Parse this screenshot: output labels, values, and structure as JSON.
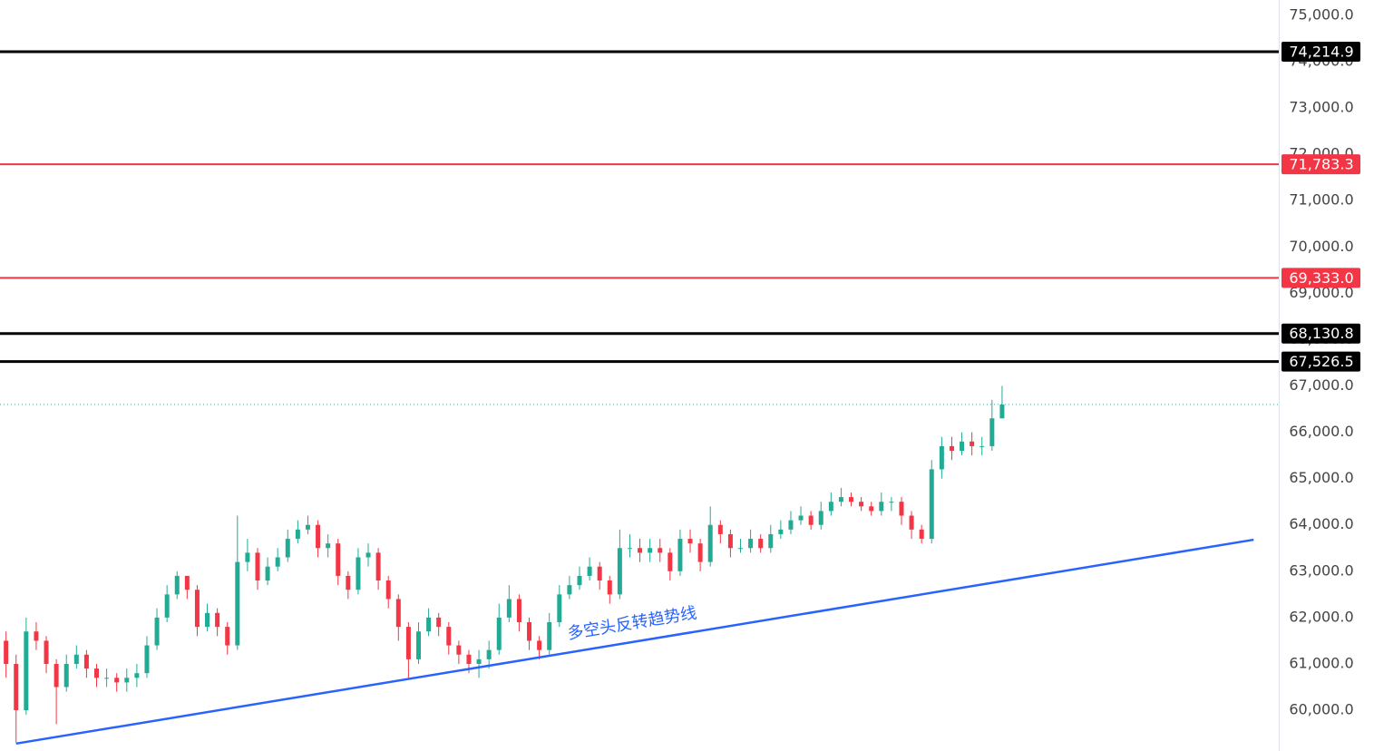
{
  "chart_data": {
    "type": "candlestick",
    "xlim": [
      -0.6,
      126.5
    ],
    "ylim": [
      59120,
      75330
    ],
    "yticks": [
      {
        "value": 60000,
        "label": "60,000.0"
      },
      {
        "value": 61000,
        "label": "61,000.0"
      },
      {
        "value": 62000,
        "label": "62,000.0"
      },
      {
        "value": 63000,
        "label": "63,000.0"
      },
      {
        "value": 64000,
        "label": "64,000.0"
      },
      {
        "value": 65000,
        "label": "65,000.0"
      },
      {
        "value": 66000,
        "label": "66,000.0"
      },
      {
        "value": 67000,
        "label": "67,000.0"
      },
      {
        "value": 68000,
        "label": "68,000.0"
      },
      {
        "value": 69000,
        "label": "69,000.0"
      },
      {
        "value": 70000,
        "label": "70,000.0"
      },
      {
        "value": 71000,
        "label": "71,000.0"
      },
      {
        "value": 72000,
        "label": "72,000.0"
      },
      {
        "value": 73000,
        "label": "73,000.0"
      },
      {
        "value": 74000,
        "label": "74,000.0"
      },
      {
        "value": 75000,
        "label": "75,000.0"
      }
    ],
    "up_color": "#22ab94",
    "down_color": "#f23645",
    "open": [
      61500,
      61000,
      60000,
      61700,
      61500,
      61000,
      60500,
      61000,
      61200,
      60900,
      60700,
      60700,
      60600,
      60700,
      60800,
      61400,
      62000,
      62500,
      62900,
      62600,
      61800,
      62100,
      61800,
      61400,
      63200,
      63400,
      62800,
      63100,
      63300,
      63700,
      63900,
      64000,
      63500,
      63600,
      62900,
      62600,
      63300,
      63400,
      62800,
      62400,
      61800,
      61100,
      61700,
      62000,
      61800,
      61400,
      61200,
      61000,
      61100,
      61300,
      62000,
      62400,
      61900,
      61500,
      61300,
      61900,
      62500,
      62700,
      62900,
      63100,
      62800,
      62500,
      63500,
      63500,
      63400,
      63500,
      63400,
      63000,
      63700,
      63600,
      63200,
      64000,
      63800,
      63500,
      63500,
      63700,
      63500,
      63800,
      63900,
      64100,
      64200,
      64000,
      64300,
      64500,
      64600,
      64500,
      64400,
      64300,
      64500,
      64500,
      64200,
      63900,
      63700,
      65200,
      65700,
      65600,
      65800,
      65700,
      65700,
      66300
    ],
    "high": [
      61700,
      61200,
      62000,
      61900,
      61600,
      61100,
      61200,
      61400,
      61300,
      61000,
      60900,
      60800,
      60900,
      61000,
      61600,
      62200,
      62700,
      63000,
      62900,
      62700,
      62300,
      62200,
      61900,
      64200,
      63700,
      63500,
      63300,
      63500,
      63900,
      64100,
      64200,
      64100,
      63800,
      63700,
      63000,
      63500,
      63600,
      63500,
      62900,
      62500,
      61900,
      61900,
      62200,
      62100,
      61900,
      61500,
      61300,
      61300,
      61500,
      62300,
      62700,
      62500,
      62000,
      61600,
      62100,
      62700,
      62900,
      63100,
      63300,
      63200,
      62900,
      63900,
      63800,
      63700,
      63700,
      63700,
      63500,
      63900,
      63900,
      63700,
      64400,
      64100,
      63900,
      63700,
      63900,
      63800,
      64000,
      64100,
      64300,
      64400,
      64300,
      64500,
      64700,
      64800,
      64700,
      64600,
      64500,
      64700,
      64600,
      64600,
      64300,
      64000,
      65400,
      65900,
      65900,
      66000,
      66000,
      65900,
      66700,
      67000
    ],
    "low": [
      60700,
      59300,
      59900,
      61300,
      60800,
      59700,
      60400,
      60900,
      60700,
      60500,
      60500,
      60400,
      60400,
      60500,
      60700,
      61300,
      61900,
      62400,
      62400,
      61600,
      61700,
      61600,
      61200,
      61300,
      63000,
      62600,
      62700,
      63000,
      63200,
      63600,
      63800,
      63300,
      63300,
      62700,
      62400,
      62500,
      63100,
      62600,
      62200,
      61500,
      60700,
      61000,
      61600,
      61600,
      61200,
      61000,
      60800,
      60700,
      60900,
      61200,
      61900,
      61700,
      61300,
      61100,
      61200,
      61800,
      62400,
      62600,
      62800,
      62600,
      62300,
      62400,
      63300,
      63200,
      63200,
      63200,
      62800,
      62900,
      63400,
      63000,
      63100,
      63600,
      63300,
      63400,
      63400,
      63400,
      63400,
      63700,
      63800,
      64000,
      63900,
      63900,
      64200,
      64400,
      64400,
      64300,
      64200,
      64200,
      64300,
      64000,
      63700,
      63600,
      63600,
      65000,
      65400,
      65500,
      65500,
      65500,
      65600,
      66300
    ],
    "close": [
      61000,
      60000,
      61700,
      61500,
      61000,
      60500,
      61000,
      61200,
      60900,
      60700,
      60700,
      60600,
      60700,
      60800,
      61400,
      62000,
      62500,
      62900,
      62600,
      61800,
      62100,
      61800,
      61400,
      63200,
      63400,
      62800,
      63100,
      63300,
      63700,
      63900,
      64000,
      63500,
      63600,
      62900,
      62600,
      63300,
      63400,
      62800,
      62400,
      61800,
      61100,
      61700,
      62000,
      61800,
      61400,
      61200,
      61000,
      61100,
      61300,
      62000,
      62400,
      61900,
      61500,
      61300,
      61900,
      62500,
      62700,
      62900,
      63100,
      62800,
      62500,
      63500,
      63500,
      63400,
      63500,
      63400,
      63000,
      63700,
      63600,
      63200,
      64000,
      63800,
      63500,
      63500,
      63700,
      63500,
      63800,
      63900,
      64100,
      64200,
      64000,
      64300,
      64500,
      64600,
      64500,
      64400,
      64300,
      64500,
      64500,
      64200,
      63900,
      63700,
      65200,
      65700,
      65600,
      65800,
      65700,
      65700,
      66300,
      66600
    ],
    "levels": [
      {
        "value": 74214.9,
        "label": "74,214.9",
        "color": "#000000"
      },
      {
        "value": 71783.3,
        "label": "71,783.3",
        "color": "#f23645"
      },
      {
        "value": 69333.0,
        "label": "69,333.0",
        "color": "#f23645"
      },
      {
        "value": 68130.8,
        "label": "68,130.8",
        "color": "#000000"
      },
      {
        "value": 67526.5,
        "label": "67,526.5",
        "color": "#000000"
      }
    ],
    "trendline": {
      "start": {
        "x": 1,
        "y": 59280
      },
      "end": {
        "x": 124,
        "y": 63680
      },
      "color": "#2962ff",
      "label": "多空头反转趋势线"
    }
  }
}
